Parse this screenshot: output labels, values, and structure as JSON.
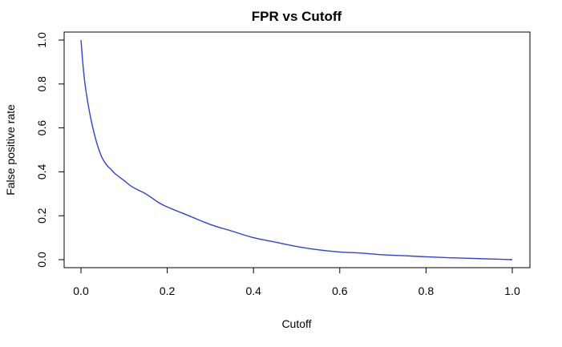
{
  "chart_data": {
    "type": "line",
    "title": "FPR vs Cutoff",
    "xlabel": "Cutoff",
    "ylabel": "False positive rate",
    "xlim": [
      0,
      1
    ],
    "ylim": [
      0,
      1
    ],
    "x_ticks": [
      "0.0",
      "0.2",
      "0.4",
      "0.6",
      "0.8",
      "1.0"
    ],
    "y_ticks": [
      "0.0",
      "0.2",
      "0.4",
      "0.6",
      "0.8",
      "1.0"
    ],
    "grid": false,
    "series": [
      {
        "color": "#3040d8",
        "x": [
          0.0,
          0.005,
          0.01,
          0.02,
          0.03,
          0.04,
          0.05,
          0.06,
          0.07,
          0.08,
          0.1,
          0.12,
          0.15,
          0.18,
          0.2,
          0.25,
          0.3,
          0.35,
          0.4,
          0.45,
          0.5,
          0.55,
          0.6,
          0.65,
          0.7,
          0.75,
          0.8,
          0.85,
          0.9,
          0.95,
          1.0
        ],
        "y": [
          1.0,
          0.88,
          0.79,
          0.67,
          0.58,
          0.51,
          0.46,
          0.43,
          0.41,
          0.39,
          0.36,
          0.33,
          0.3,
          0.26,
          0.24,
          0.2,
          0.16,
          0.13,
          0.1,
          0.08,
          0.06,
          0.045,
          0.035,
          0.03,
          0.022,
          0.018,
          0.013,
          0.009,
          0.006,
          0.003,
          0.0
        ]
      }
    ]
  }
}
